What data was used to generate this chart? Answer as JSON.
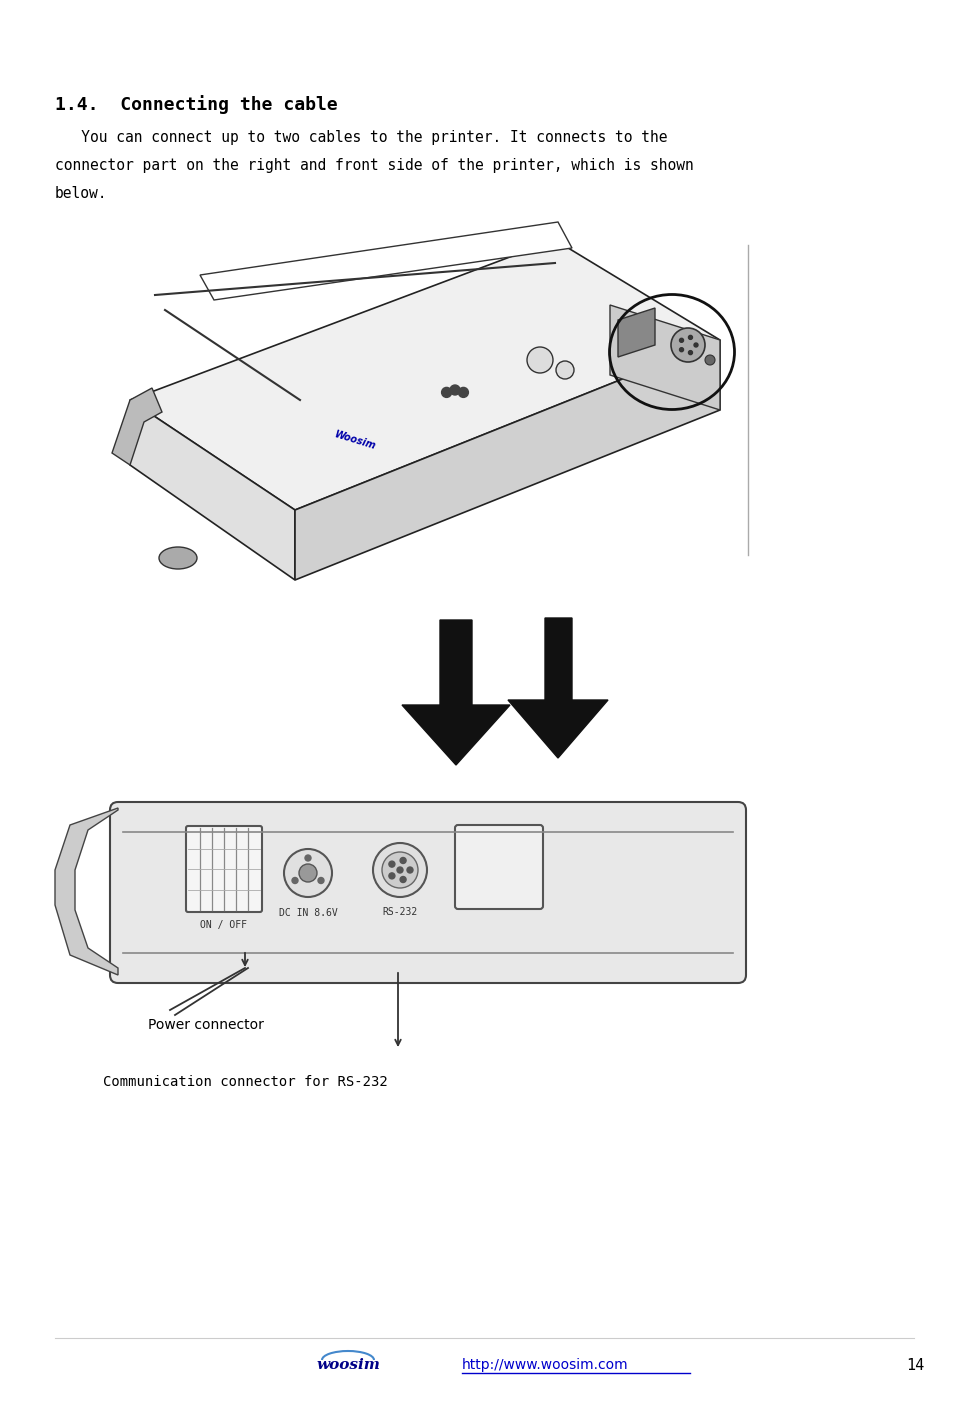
{
  "title": "1.4.  Connecting the cable",
  "body_text_1": "   You can connect up to two cables to the printer. It connects to the",
  "body_text_2": "connector part on the right and front side of the printer, which is shown",
  "body_text_3": "below.",
  "label_power": "Power connector",
  "label_comm": "Communication connector for RS-232",
  "footer_url": "http://www.woosim.com",
  "page_number": "14",
  "bg_color": "#ffffff",
  "text_color": "#000000",
  "link_color": "#0000cc",
  "title_fontsize": 13,
  "body_fontsize": 10.5,
  "label_fontsize": 10,
  "footer_fontsize": 10
}
